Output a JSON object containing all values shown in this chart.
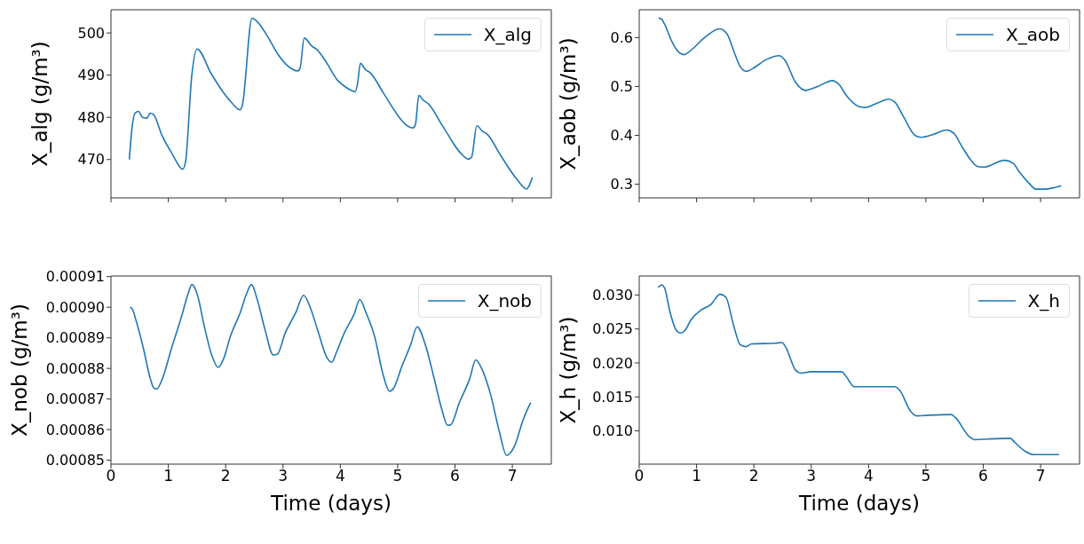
{
  "chart_data": [
    {
      "type": "line",
      "ylabel": "X_alg (g/m³)",
      "xlim": [
        0,
        7.68
      ],
      "xticks": [
        0,
        1,
        2,
        3,
        4,
        5,
        6,
        7
      ],
      "ylim": [
        460.9,
        505.5
      ],
      "yticks": [
        470,
        480,
        490,
        500
      ],
      "tick_labels": "y",
      "legend": "top right",
      "x": [
        0.32,
        0.37,
        0.42,
        0.48,
        0.55,
        0.63,
        0.68,
        0.74,
        0.89,
        1.07,
        1.25,
        1.3,
        1.41,
        1.5,
        1.75,
        1.95,
        2.11,
        2.25,
        2.29,
        2.46,
        2.55,
        2.73,
        2.9,
        3.06,
        3.26,
        3.3,
        3.37,
        3.51,
        3.58,
        3.74,
        3.95,
        4.08,
        4.26,
        4.3,
        4.35,
        4.44,
        4.52,
        4.75,
        5.04,
        5.14,
        5.27,
        5.31,
        5.37,
        5.45,
        5.53,
        5.79,
        6.1,
        6.23,
        6.29,
        6.38,
        6.48,
        6.56,
        6.8,
        7.08,
        7.25,
        7.29,
        7.35
      ],
      "series": [
        {
          "name": "X_alg",
          "color": "#1f77b4",
          "values": [
            470,
            477.8,
            481.0,
            481.4,
            480.0,
            479.8,
            481.0,
            480.7,
            475.7,
            471.3,
            467.7,
            469.4,
            490.0,
            496.2,
            490.3,
            486.1,
            483.4,
            481.8,
            482.8,
            503.5,
            502.7,
            499.2,
            495.2,
            492.5,
            491.0,
            491.8,
            498.8,
            496.8,
            496.2,
            493.4,
            488.8,
            487.3,
            486.1,
            487.9,
            492.8,
            491.3,
            490.6,
            485.8,
            479.8,
            478.3,
            477.5,
            478.3,
            485.2,
            484.0,
            483.3,
            477.8,
            471.5,
            470.1,
            470.6,
            478.0,
            476.7,
            476.0,
            470.9,
            465.3,
            463.0,
            463.7,
            465.8
          ]
        }
      ]
    },
    {
      "type": "line",
      "ylabel": "X_aob (g/m³)",
      "xlim": [
        0,
        7.68
      ],
      "xticks": [
        0,
        1,
        2,
        3,
        4,
        5,
        6,
        7
      ],
      "ylim": [
        0.272,
        0.657
      ],
      "yticks": [
        0.3,
        0.4,
        0.5,
        0.6
      ],
      "tick_labels": "y",
      "legend": "top right",
      "x": [
        0.34,
        0.39,
        0.44,
        0.57,
        0.7,
        0.78,
        0.88,
        1.14,
        1.4,
        1.53,
        1.66,
        1.76,
        1.87,
        1.97,
        2.23,
        2.44,
        2.54,
        2.72,
        2.85,
        2.9,
        3.11,
        3.37,
        3.47,
        3.63,
        3.83,
        3.94,
        4.15,
        4.35,
        4.46,
        4.61,
        4.82,
        4.92,
        5.13,
        5.36,
        5.49,
        5.62,
        5.78,
        5.91,
        6.01,
        6.37,
        6.52,
        6.63,
        6.79,
        6.92,
        7.07,
        7.36
      ],
      "series": [
        {
          "name": "X_aob",
          "color": "#1f77b4",
          "values": [
            0.64,
            0.638,
            0.628,
            0.592,
            0.569,
            0.565,
            0.572,
            0.6,
            0.618,
            0.608,
            0.569,
            0.541,
            0.531,
            0.536,
            0.556,
            0.563,
            0.554,
            0.51,
            0.494,
            0.492,
            0.5,
            0.512,
            0.506,
            0.479,
            0.459,
            0.457,
            0.466,
            0.474,
            0.468,
            0.438,
            0.399,
            0.396,
            0.402,
            0.411,
            0.404,
            0.379,
            0.35,
            0.336,
            0.335,
            0.349,
            0.343,
            0.325,
            0.303,
            0.29,
            0.29,
            0.297
          ]
        }
      ]
    },
    {
      "type": "line",
      "xlabel": "Time (days)",
      "ylabel": "X_nob (g/m³)",
      "xlim": [
        0,
        7.68
      ],
      "xticks": [
        0,
        1,
        2,
        3,
        4,
        5,
        6,
        7
      ],
      "ylim": [
        0.0008487,
        0.0009102
      ],
      "yticks": [
        0.00085,
        {
          "value": 0.00086,
          "label": "0.00086"
        },
        {
          "value": 0.00087,
          "label": "0.00087"
        },
        {
          "value": 0.00088,
          "label": "0.00088"
        },
        {
          "value": 0.00089,
          "label": "0.00089"
        },
        {
          "value": 0.0009,
          "label": "0.00090"
        },
        {
          "value": 0.00091,
          "label": "0.00091"
        }
      ],
      "legend": "top right",
      "x": [
        0.33,
        0.37,
        0.43,
        0.56,
        0.69,
        0.75,
        0.8,
        0.9,
        1.05,
        1.23,
        1.35,
        1.41,
        1.51,
        1.62,
        1.76,
        1.87,
        1.97,
        2.08,
        2.26,
        2.37,
        2.45,
        2.55,
        2.69,
        2.83,
        2.9,
        3.04,
        3.22,
        3.36,
        3.47,
        3.6,
        3.77,
        3.85,
        3.94,
        4.07,
        4.24,
        4.34,
        4.45,
        4.6,
        4.74,
        4.86,
        4.93,
        5.07,
        5.23,
        5.34,
        5.48,
        5.63,
        5.77,
        5.87,
        5.92,
        6.08,
        6.26,
        6.36,
        6.49,
        6.62,
        6.77,
        6.9,
        7.04,
        7.19,
        7.32
      ],
      "series": [
        {
          "name": "X_nob",
          "color": "#1f77b4",
          "values": [
            0.0009,
            0.0008995,
            0.0008961,
            0.000887,
            0.0008764,
            0.0008735,
            0.0008733,
            0.0008768,
            0.0008862,
            0.0008969,
            0.0009047,
            0.0009074,
            0.0009039,
            0.0008944,
            0.0008842,
            0.0008803,
            0.0008834,
            0.0008903,
            0.0008985,
            0.0009047,
            0.0009074,
            0.0009026,
            0.0008924,
            0.0008844,
            0.0008846,
            0.0008916,
            0.0008981,
            0.0009039,
            0.0009002,
            0.0008928,
            0.0008834,
            0.000882,
            0.0008856,
            0.0008916,
            0.0008977,
            0.0009025,
            0.0008981,
            0.0008903,
            0.0008784,
            0.0008725,
            0.0008735,
            0.0008805,
            0.0008879,
            0.0008936,
            0.0008879,
            0.0008772,
            0.0008666,
            0.0008614,
            0.0008615,
            0.000869,
            0.0008768,
            0.0008828,
            0.0008789,
            0.0008715,
            0.0008596,
            0.0008516,
            0.0008547,
            0.0008633,
            0.0008688
          ]
        }
      ]
    },
    {
      "type": "line",
      "xlabel": "Time (days)",
      "ylabel": "X_h (g/m³)",
      "xlim": [
        0,
        7.68
      ],
      "xticks": [
        0,
        1,
        2,
        3,
        4,
        5,
        6,
        7
      ],
      "ylim": [
        0.0051,
        0.0328
      ],
      "yticks": [
        {
          "value": 0.01,
          "label": "0.010"
        },
        0.015,
        {
          "value": 0.02,
          "label": "0.020"
        },
        0.025,
        {
          "value": 0.03,
          "label": "0.030"
        }
      ],
      "legend": "top right",
      "x": [
        0.33,
        0.39,
        0.44,
        0.54,
        0.64,
        0.72,
        0.8,
        0.9,
        1.08,
        1.25,
        1.41,
        1.51,
        1.65,
        1.76,
        1.86,
        1.96,
        2.37,
        2.49,
        2.55,
        2.73,
        2.82,
        2.99,
        3.45,
        3.53,
        3.61,
        3.75,
        3.92,
        4.46,
        4.54,
        4.74,
        4.84,
        5.05,
        5.44,
        5.52,
        5.75,
        5.85,
        6.08,
        6.47,
        6.55,
        6.73,
        6.88,
        7.04,
        7.32
      ],
      "series": [
        {
          "name": "X_h",
          "color": "#1f77b4",
          "values": [
            0.0311,
            0.0315,
            0.0311,
            0.0274,
            0.0249,
            0.0244,
            0.0248,
            0.0263,
            0.0278,
            0.0286,
            0.0301,
            0.0297,
            0.0254,
            0.0227,
            0.0224,
            0.0228,
            0.0229,
            0.023,
            0.0224,
            0.0189,
            0.0185,
            0.0187,
            0.0187,
            0.0187,
            0.018,
            0.0165,
            0.0165,
            0.0165,
            0.016,
            0.0128,
            0.0122,
            0.0123,
            0.0124,
            0.0119,
            0.0092,
            0.0087,
            0.0088,
            0.0089,
            0.0083,
            0.007,
            0.0065,
            0.0065,
            0.0065
          ]
        }
      ]
    }
  ]
}
